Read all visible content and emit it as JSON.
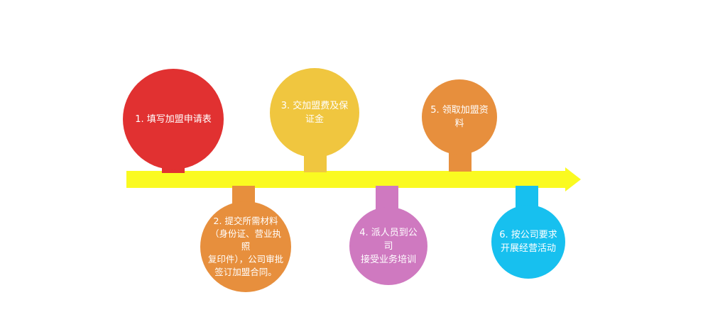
{
  "colors": {
    "arrow": "#fafa21",
    "red": "#e13131",
    "yellow": "#f0c63f",
    "orange": "#e78f3d",
    "pink": "#cf79c0",
    "blue": "#17c0ef"
  },
  "steps": [
    {
      "text": "1. 填写加盟申请表",
      "color": "#e13131"
    },
    {
      "text": "2. 提交所需材料\n（身份证、营业执照\n复印件），公司审批\n签订加盟合同。",
      "color": "#e78f3d"
    },
    {
      "text": "3. 交加盟费及保证金",
      "color": "#f0c63f"
    },
    {
      "text": "4. 派人员到公司\n接受业务培训",
      "color": "#cf79c0"
    },
    {
      "text": "5. 领取加盟资料",
      "color": "#e78f3d"
    },
    {
      "text": "6. 按公司要求\n开展经营活动",
      "color": "#17c0ef"
    }
  ]
}
